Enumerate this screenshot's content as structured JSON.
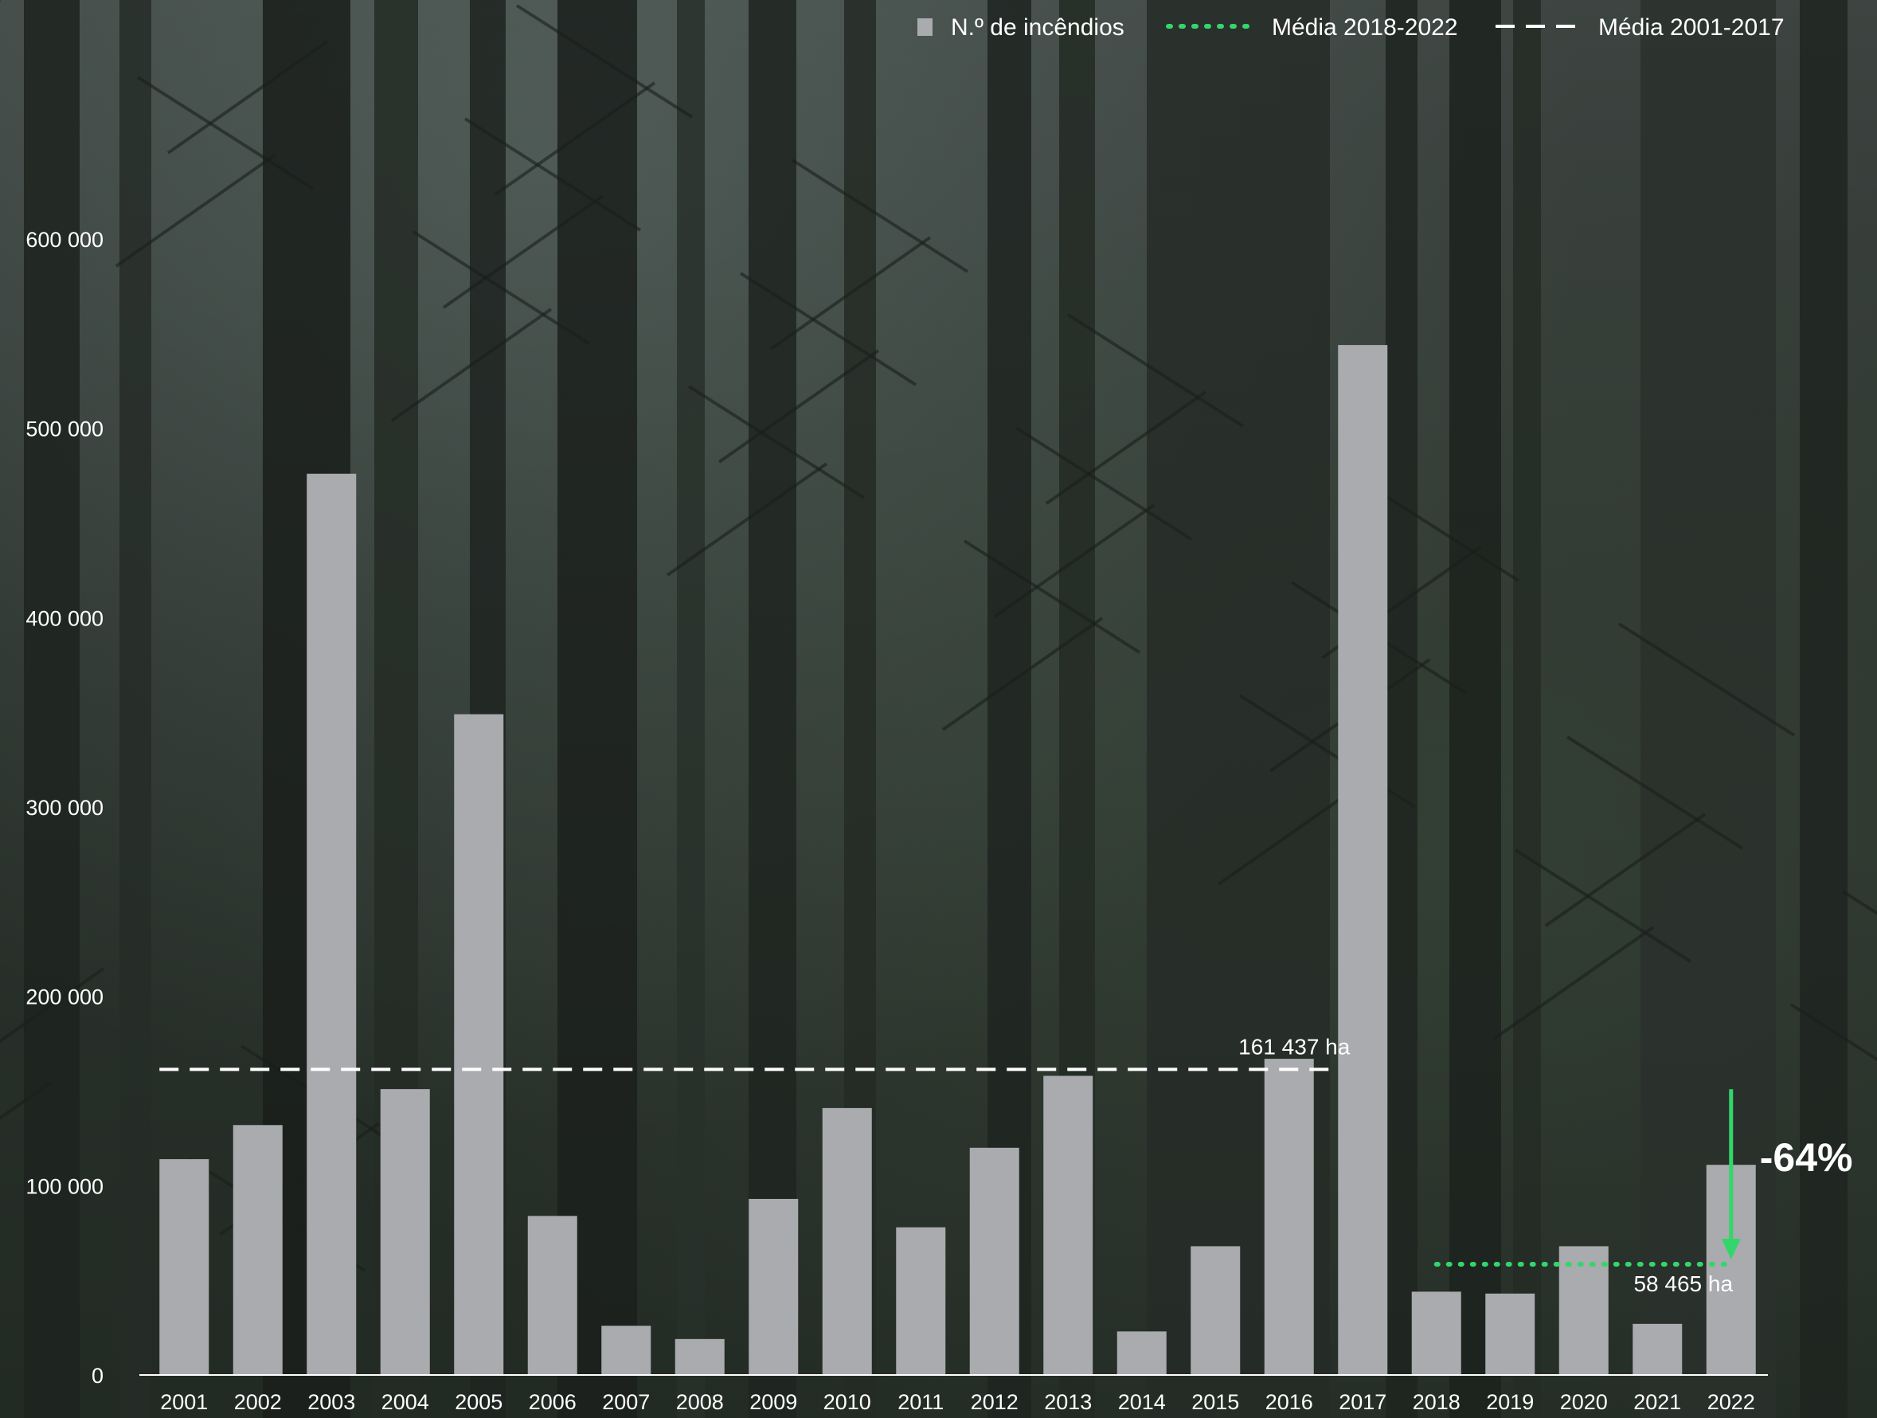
{
  "legend": {
    "bars_label": "N.º de incêndios",
    "recent_avg_label": "Média 2018-2022",
    "past_avg_label": "Média 2001-2017"
  },
  "annotations": {
    "past_avg_value": "161 437 ha",
    "recent_avg_value": "58 465 ha",
    "change": "-64%"
  },
  "colors": {
    "bar": "#a9abae",
    "recent_avg_line": "#33d66a",
    "past_avg_line": "#ffffff",
    "arrow": "#33d66a",
    "axis": "#ffffff"
  },
  "chart_data": {
    "type": "bar",
    "categories": [
      "2001",
      "2002",
      "2003",
      "2004",
      "2005",
      "2006",
      "2007",
      "2008",
      "2009",
      "2010",
      "2011",
      "2012",
      "2013",
      "2014",
      "2015",
      "2016",
      "2017",
      "2018",
      "2019",
      "2020",
      "2021",
      "2022"
    ],
    "series": [
      {
        "name": "N.º de incêndios",
        "values": [
          114000,
          132000,
          476000,
          151000,
          349000,
          84000,
          26000,
          19000,
          93000,
          141000,
          78000,
          120000,
          158000,
          23000,
          68000,
          167000,
          544000,
          44000,
          43000,
          68000,
          27000,
          111000
        ]
      }
    ],
    "averages": [
      {
        "name": "Média 2001-2017",
        "value": 161437,
        "from": "2001",
        "to": "2017",
        "style": "dashed"
      },
      {
        "name": "Média 2018-2022",
        "value": 58465,
        "from": "2018",
        "to": "2022",
        "style": "dotted"
      }
    ],
    "yticks": [
      "0",
      "100 000",
      "200 000",
      "300 000",
      "400 000",
      "500 000",
      "600 000"
    ],
    "ylim": [
      0,
      600000
    ],
    "grid": false,
    "legend_position": "top-right"
  }
}
